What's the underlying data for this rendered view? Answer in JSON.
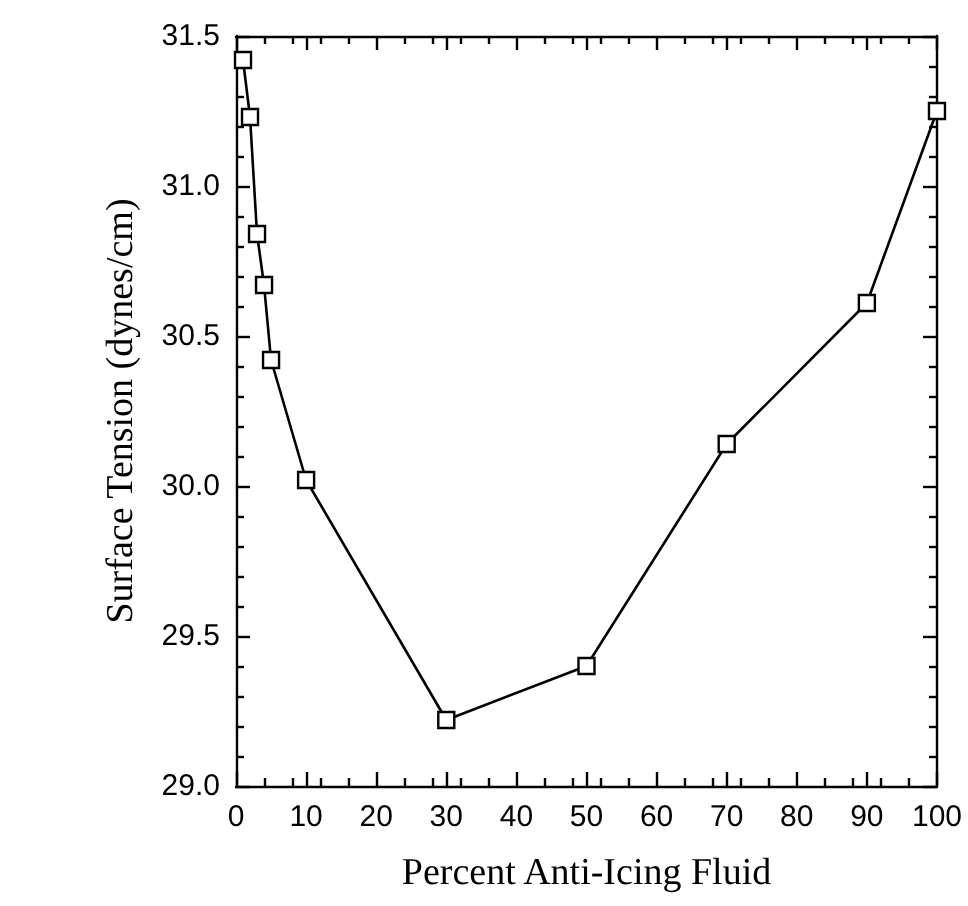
{
  "chart_data": {
    "type": "line",
    "xlabel": "Percent Anti-Icing Fluid",
    "ylabel": "Surface Tension (dynes/cm)",
    "x": [
      1,
      2,
      3,
      4,
      5,
      10,
      30,
      50,
      70,
      90,
      100
    ],
    "series": [
      {
        "color": "#000000",
        "values": [
          31.42,
          31.23,
          30.84,
          30.67,
          30.42,
          30.02,
          29.22,
          29.4,
          30.14,
          30.61,
          31.25
        ]
      }
    ],
    "xlim": [
      0,
      100
    ],
    "xticks": [
      0,
      10,
      20,
      30,
      40,
      50,
      60,
      70,
      80,
      90,
      100
    ],
    "ylim": [
      29,
      31.5
    ],
    "yticks": [
      {
        "value": 29,
        "label": "29.0"
      },
      {
        "value": 29.5,
        "label": "29.5"
      },
      {
        "value": 30,
        "label": "30.0"
      },
      {
        "value": 30.5,
        "label": "30.5"
      },
      {
        "value": 31,
        "label": "31.0"
      },
      {
        "value": 31.5,
        "label": "31.5"
      }
    ],
    "grid": false,
    "marker": "square",
    "line_style": "solid"
  }
}
